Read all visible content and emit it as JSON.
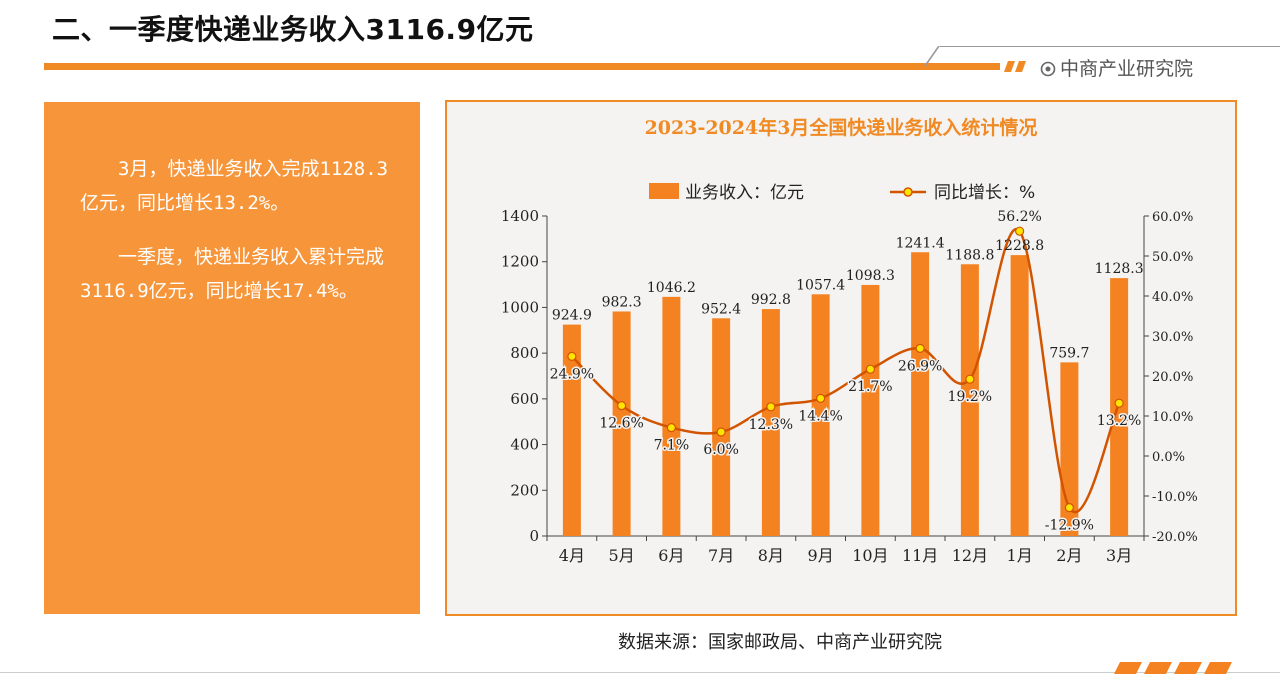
{
  "page": {
    "title": "二、一季度快递业务收入3116.9亿元",
    "brand": "中商产业研究院",
    "source": "数据来源：国家邮政局、中商产业研究院",
    "accent_color": "#f08a24",
    "panel_color": "#f7953a"
  },
  "left_panel": {
    "paragraphs": [
      "　　3月，快递业务收入完成1128.3亿元，同比增长13.2%。",
      "　　一季度，快递业务收入累计完成3116.9亿元，同比增长17.4%。"
    ]
  },
  "chart_data": {
    "type": "bar",
    "title": "2023-2024年3月全国快递业务收入统计情况",
    "categories": [
      "4月",
      "5月",
      "6月",
      "7月",
      "8月",
      "9月",
      "10月",
      "11月",
      "12月",
      "1月",
      "2月",
      "3月"
    ],
    "series": [
      {
        "name": "业务收入：亿元",
        "type": "bar",
        "axis": "left",
        "color": "#f58220",
        "values": [
          924.9,
          982.3,
          1046.2,
          952.4,
          992.8,
          1057.4,
          1098.3,
          1241.4,
          1188.8,
          1228.8,
          759.7,
          1128.3
        ],
        "labels": [
          "924.9",
          "982.3",
          "1046.2",
          "952.4",
          "992.8",
          "1057.4",
          "1098.3",
          "1241.4",
          "1188.8",
          "1228.8",
          "759.7",
          "1128.3"
        ]
      },
      {
        "name": "同比增长：%",
        "type": "line",
        "axis": "right",
        "color": "#d35400",
        "marker_color": "#ffe400",
        "values": [
          24.9,
          12.6,
          7.1,
          6.0,
          12.3,
          14.4,
          21.7,
          26.9,
          19.2,
          56.2,
          -12.9,
          13.2
        ],
        "labels": [
          "24.9%",
          "12.6%",
          "7.1%",
          "6.0%",
          "12.3%",
          "14.4%",
          "21.7%",
          "26.9%",
          "19.2%",
          "56.2%",
          "-12.9%",
          "13.2%"
        ]
      }
    ],
    "y_left": {
      "range": [
        0,
        1400
      ],
      "ticks": [
        0,
        200,
        400,
        600,
        800,
        1000,
        1200,
        1400
      ],
      "tick_labels": [
        "0",
        "200",
        "400",
        "600",
        "800",
        "1000",
        "1200",
        "1400"
      ]
    },
    "y_right": {
      "range": [
        -20,
        60
      ],
      "ticks": [
        -20,
        -10,
        0,
        10,
        20,
        30,
        40,
        50,
        60
      ],
      "tick_labels": [
        "-20.0%",
        "-10.0%",
        "0.0%",
        "10.0%",
        "20.0%",
        "30.0%",
        "40.0%",
        "50.0%",
        "60.0%"
      ]
    },
    "legend_position": "top",
    "grid": false
  }
}
